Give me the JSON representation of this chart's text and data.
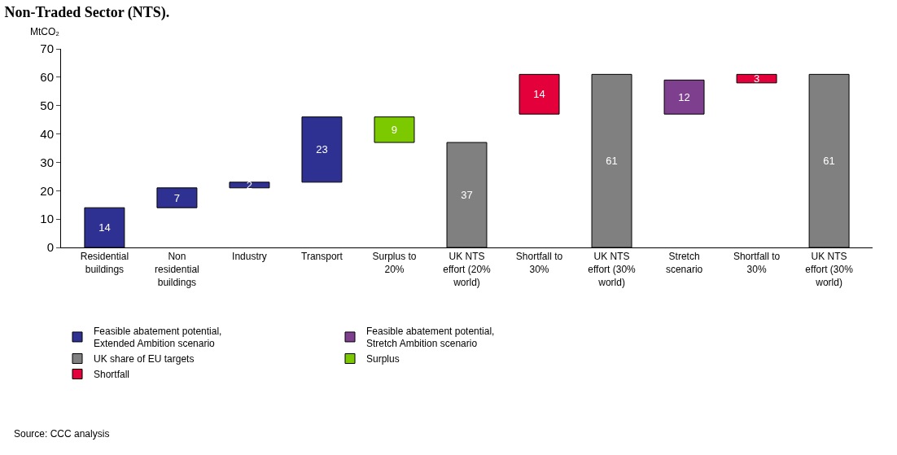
{
  "chart_data": {
    "type": "bar",
    "title": "Non-Traded Sector (NTS).",
    "ylabel": "MtCO₂",
    "categories": [
      "Residential\nbuildings",
      "Non\nresidential\nbuildings",
      "Industry",
      "Transport",
      "Surplus to\n20%",
      "UK NTS\neffort (20%\nworld)",
      "Shortfall to\n30%",
      "UK NTS\neffort (30%\nworld)",
      "Stretch\nscenario",
      "Shortfall to\n30%",
      "UK NTS\neffort (30%\nworld)"
    ],
    "series": [
      {
        "name": "Feasible abatement potential,\nExtended Ambition scenario",
        "color": "#2e3192",
        "values": [
          14,
          7,
          2,
          23,
          null,
          null,
          null,
          null,
          null,
          null,
          null
        ],
        "base": [
          0,
          14,
          21,
          23,
          null,
          null,
          null,
          null,
          null,
          null,
          null
        ]
      },
      {
        "name": "Feasible abatement potential,\nStretch Ambition scenario",
        "color": "#7f3f8f",
        "values": [
          null,
          null,
          null,
          null,
          null,
          null,
          null,
          null,
          12,
          null,
          null
        ],
        "base": [
          null,
          null,
          null,
          null,
          null,
          null,
          null,
          null,
          47,
          null,
          null
        ]
      },
      {
        "name": "UK share of EU targets",
        "color": "#808080",
        "values": [
          null,
          null,
          null,
          null,
          null,
          37,
          null,
          61,
          null,
          null,
          61
        ],
        "base": [
          null,
          null,
          null,
          null,
          null,
          0,
          null,
          0,
          null,
          null,
          0
        ]
      },
      {
        "name": "Surplus",
        "color": "#7dc900",
        "values": [
          null,
          null,
          null,
          null,
          9,
          null,
          null,
          null,
          null,
          null,
          null
        ],
        "base": [
          null,
          null,
          null,
          null,
          37,
          null,
          null,
          null,
          null,
          null,
          null
        ]
      },
      {
        "name": "Shortfall",
        "color": "#e4003a",
        "values": [
          null,
          null,
          null,
          null,
          null,
          null,
          14,
          null,
          null,
          3,
          null
        ],
        "base": [
          null,
          null,
          null,
          null,
          null,
          null,
          47,
          null,
          null,
          58,
          null
        ]
      }
    ],
    "ylim": [
      0,
      70
    ],
    "yticks": [
      0,
      10,
      20,
      30,
      40,
      50,
      60,
      70
    ],
    "data_labels": true,
    "legend": "bottom",
    "annotations": [
      "Source: CCC analysis"
    ]
  }
}
